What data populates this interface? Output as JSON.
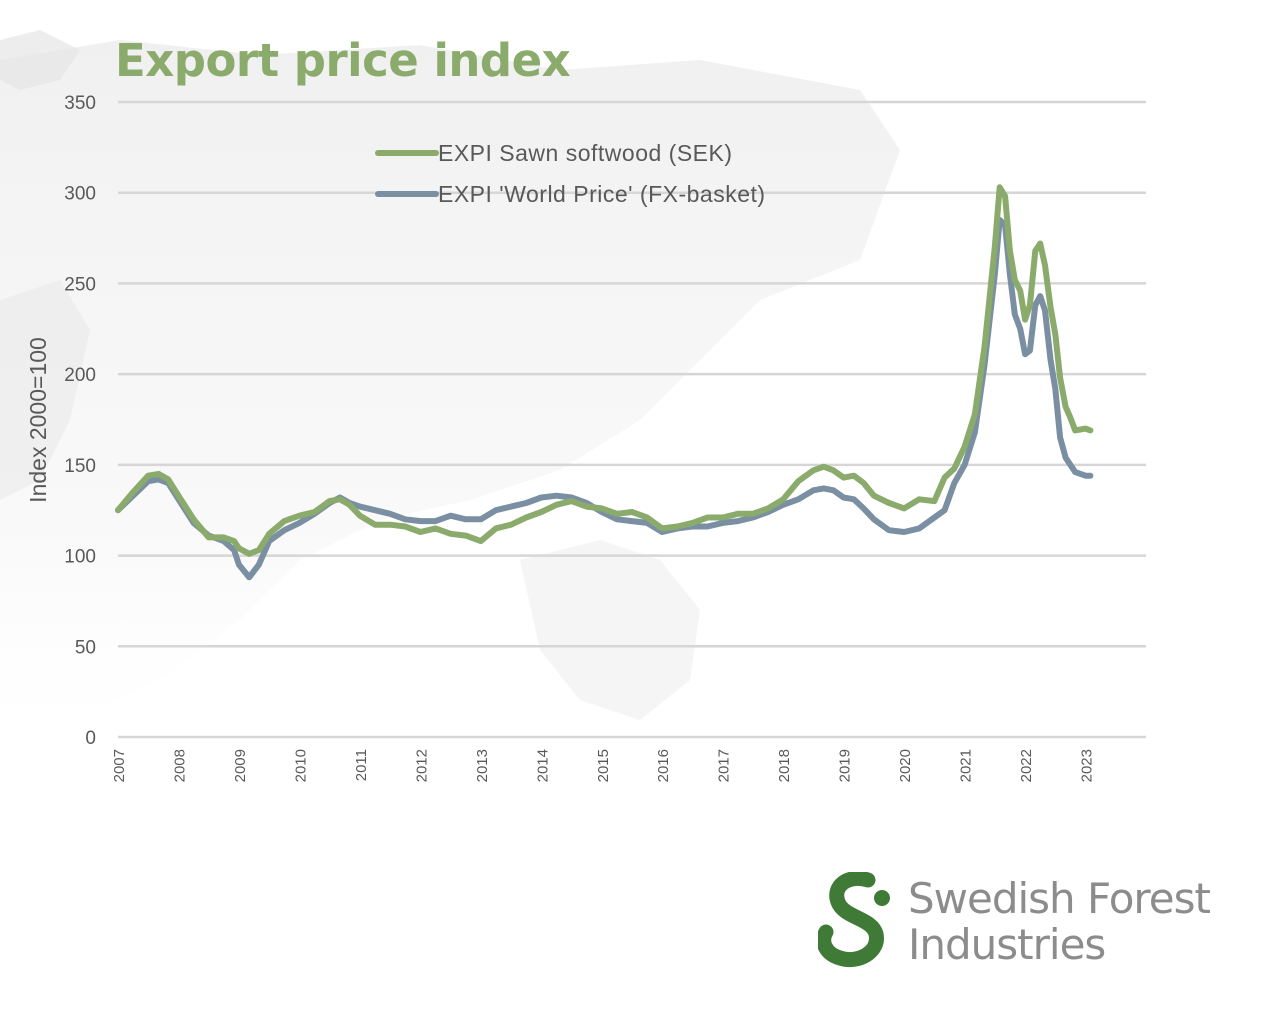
{
  "chart_data": {
    "type": "line",
    "title": "Export price index",
    "ylabel": "Index 2000=100",
    "xlabel": "",
    "ylim": [
      0,
      350
    ],
    "y_ticks": [
      0,
      50,
      100,
      150,
      200,
      250,
      300,
      350
    ],
    "xlim": [
      2007,
      2024
    ],
    "x_ticks": [
      "2007",
      "2008",
      "2009",
      "2010",
      "2011",
      "2012",
      "2013",
      "2014",
      "2015",
      "2016",
      "2017",
      "2018",
      "2019",
      "2020",
      "2021",
      "2022",
      "2023"
    ],
    "grid": true,
    "legend_position": "top-center",
    "series": [
      {
        "name": "EXPI Sawn softwood (SEK)",
        "color": "#8aab6b",
        "points": [
          [
            2007.0,
            125
          ],
          [
            2007.25,
            135
          ],
          [
            2007.5,
            144
          ],
          [
            2007.67,
            145
          ],
          [
            2007.83,
            142
          ],
          [
            2008.0,
            133
          ],
          [
            2008.25,
            120
          ],
          [
            2008.5,
            110
          ],
          [
            2008.75,
            110
          ],
          [
            2008.92,
            108
          ],
          [
            2009.0,
            104
          ],
          [
            2009.17,
            101
          ],
          [
            2009.33,
            103
          ],
          [
            2009.5,
            112
          ],
          [
            2009.75,
            119
          ],
          [
            2010.0,
            122
          ],
          [
            2010.25,
            124
          ],
          [
            2010.5,
            130
          ],
          [
            2010.67,
            131
          ],
          [
            2010.83,
            128
          ],
          [
            2011.0,
            122
          ],
          [
            2011.25,
            117
          ],
          [
            2011.5,
            117
          ],
          [
            2011.75,
            116
          ],
          [
            2012.0,
            113
          ],
          [
            2012.25,
            115
          ],
          [
            2012.5,
            112
          ],
          [
            2012.75,
            111
          ],
          [
            2013.0,
            108
          ],
          [
            2013.25,
            115
          ],
          [
            2013.5,
            117
          ],
          [
            2013.75,
            121
          ],
          [
            2014.0,
            124
          ],
          [
            2014.25,
            128
          ],
          [
            2014.5,
            130
          ],
          [
            2014.75,
            127
          ],
          [
            2015.0,
            126
          ],
          [
            2015.25,
            123
          ],
          [
            2015.5,
            124
          ],
          [
            2015.75,
            121
          ],
          [
            2016.0,
            115
          ],
          [
            2016.25,
            116
          ],
          [
            2016.5,
            118
          ],
          [
            2016.75,
            121
          ],
          [
            2017.0,
            121
          ],
          [
            2017.25,
            123
          ],
          [
            2017.5,
            123
          ],
          [
            2017.75,
            126
          ],
          [
            2018.0,
            131
          ],
          [
            2018.25,
            141
          ],
          [
            2018.5,
            147
          ],
          [
            2018.67,
            149
          ],
          [
            2018.83,
            147
          ],
          [
            2019.0,
            143
          ],
          [
            2019.17,
            144
          ],
          [
            2019.33,
            140
          ],
          [
            2019.5,
            133
          ],
          [
            2019.75,
            129
          ],
          [
            2020.0,
            126
          ],
          [
            2020.25,
            131
          ],
          [
            2020.5,
            130
          ],
          [
            2020.67,
            143
          ],
          [
            2020.83,
            148
          ],
          [
            2021.0,
            160
          ],
          [
            2021.17,
            178
          ],
          [
            2021.33,
            215
          ],
          [
            2021.5,
            270
          ],
          [
            2021.58,
            303
          ],
          [
            2021.67,
            298
          ],
          [
            2021.75,
            268
          ],
          [
            2021.83,
            252
          ],
          [
            2021.92,
            246
          ],
          [
            2022.0,
            230
          ],
          [
            2022.08,
            238
          ],
          [
            2022.17,
            268
          ],
          [
            2022.25,
            272
          ],
          [
            2022.33,
            260
          ],
          [
            2022.42,
            237
          ],
          [
            2022.5,
            222
          ],
          [
            2022.58,
            198
          ],
          [
            2022.67,
            182
          ],
          [
            2022.75,
            176
          ],
          [
            2022.83,
            169
          ],
          [
            2023.0,
            170
          ],
          [
            2023.08,
            169
          ]
        ]
      },
      {
        "name": "EXPI 'World Price' (FX-basket)",
        "color": "#7b8fa3",
        "points": [
          [
            2007.0,
            125
          ],
          [
            2007.25,
            133
          ],
          [
            2007.5,
            141
          ],
          [
            2007.67,
            142
          ],
          [
            2007.83,
            140
          ],
          [
            2008.0,
            131
          ],
          [
            2008.25,
            118
          ],
          [
            2008.5,
            111
          ],
          [
            2008.75,
            108
          ],
          [
            2008.92,
            103
          ],
          [
            2009.0,
            95
          ],
          [
            2009.17,
            88
          ],
          [
            2009.33,
            95
          ],
          [
            2009.5,
            108
          ],
          [
            2009.75,
            114
          ],
          [
            2010.0,
            118
          ],
          [
            2010.25,
            123
          ],
          [
            2010.5,
            129
          ],
          [
            2010.67,
            132
          ],
          [
            2010.83,
            129
          ],
          [
            2011.0,
            127
          ],
          [
            2011.25,
            125
          ],
          [
            2011.5,
            123
          ],
          [
            2011.75,
            120
          ],
          [
            2012.0,
            119
          ],
          [
            2012.25,
            119
          ],
          [
            2012.5,
            122
          ],
          [
            2012.75,
            120
          ],
          [
            2013.0,
            120
          ],
          [
            2013.25,
            125
          ],
          [
            2013.5,
            127
          ],
          [
            2013.75,
            129
          ],
          [
            2014.0,
            132
          ],
          [
            2014.25,
            133
          ],
          [
            2014.5,
            132
          ],
          [
            2014.75,
            129
          ],
          [
            2015.0,
            124
          ],
          [
            2015.25,
            120
          ],
          [
            2015.5,
            119
          ],
          [
            2015.75,
            118
          ],
          [
            2016.0,
            113
          ],
          [
            2016.25,
            115
          ],
          [
            2016.5,
            116
          ],
          [
            2016.75,
            116
          ],
          [
            2017.0,
            118
          ],
          [
            2017.25,
            119
          ],
          [
            2017.5,
            121
          ],
          [
            2017.75,
            124
          ],
          [
            2018.0,
            128
          ],
          [
            2018.25,
            131
          ],
          [
            2018.5,
            136
          ],
          [
            2018.67,
            137
          ],
          [
            2018.83,
            136
          ],
          [
            2019.0,
            132
          ],
          [
            2019.17,
            131
          ],
          [
            2019.33,
            126
          ],
          [
            2019.5,
            120
          ],
          [
            2019.75,
            114
          ],
          [
            2020.0,
            113
          ],
          [
            2020.25,
            115
          ],
          [
            2020.5,
            121
          ],
          [
            2020.67,
            125
          ],
          [
            2020.83,
            140
          ],
          [
            2021.0,
            150
          ],
          [
            2021.17,
            168
          ],
          [
            2021.33,
            205
          ],
          [
            2021.5,
            255
          ],
          [
            2021.58,
            285
          ],
          [
            2021.67,
            282
          ],
          [
            2021.75,
            255
          ],
          [
            2021.83,
            233
          ],
          [
            2021.92,
            225
          ],
          [
            2022.0,
            211
          ],
          [
            2022.08,
            213
          ],
          [
            2022.17,
            238
          ],
          [
            2022.25,
            243
          ],
          [
            2022.33,
            235
          ],
          [
            2022.42,
            208
          ],
          [
            2022.5,
            192
          ],
          [
            2022.58,
            165
          ],
          [
            2022.67,
            154
          ],
          [
            2022.75,
            150
          ],
          [
            2022.83,
            146
          ],
          [
            2023.0,
            144
          ],
          [
            2023.08,
            144
          ]
        ]
      }
    ]
  },
  "logo": {
    "line1": "Swedish Forest",
    "line2": "Industries",
    "green": "#3f7a37",
    "text_color": "#8c8c8c"
  }
}
